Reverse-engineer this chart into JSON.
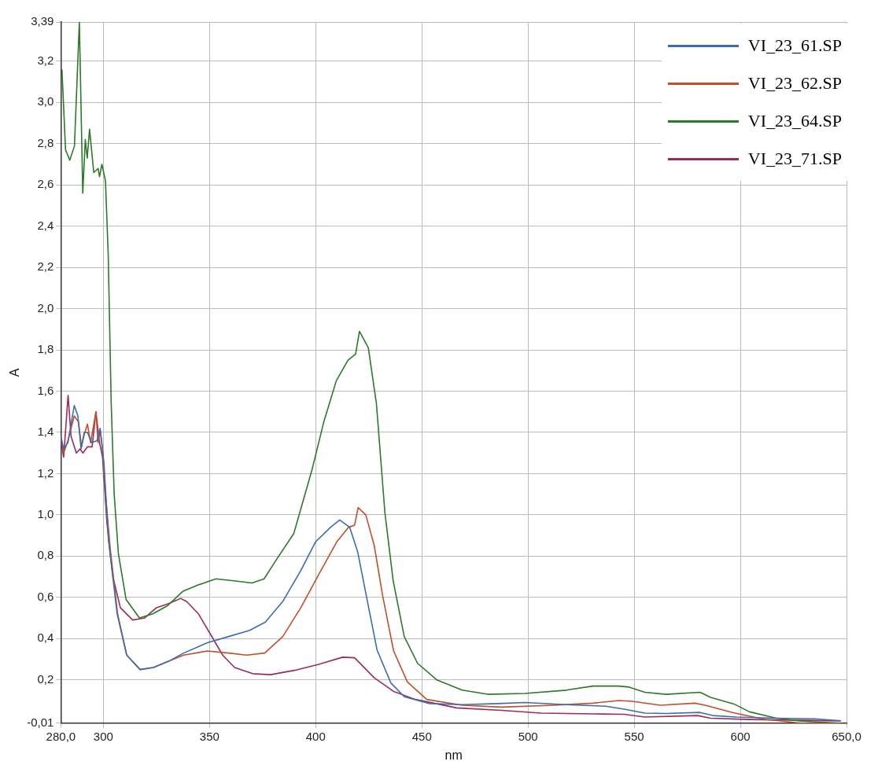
{
  "chart_data": {
    "type": "line",
    "xlabel": "nm",
    "ylabel": "A",
    "xlim": [
      280,
      650
    ],
    "ylim": [
      -0.01,
      3.39
    ],
    "xticks": [
      {
        "value": 280,
        "label": "280,0"
      },
      300,
      350,
      400,
      450,
      500,
      550,
      600,
      {
        "value": 650,
        "label": "650,0"
      }
    ],
    "yticks": [
      {
        "value": -0.01,
        "label": "-0,01"
      },
      {
        "value": 0.2,
        "label": "0,2"
      },
      {
        "value": 0.4,
        "label": "0,4"
      },
      {
        "value": 0.6,
        "label": "0,6"
      },
      {
        "value": 0.8,
        "label": "0,8"
      },
      {
        "value": 1.0,
        "label": "1,0"
      },
      {
        "value": 1.2,
        "label": "1,2"
      },
      {
        "value": 1.4,
        "label": "1,4"
      },
      {
        "value": 1.6,
        "label": "1,6"
      },
      {
        "value": 1.8,
        "label": "1,8"
      },
      {
        "value": 2.0,
        "label": "2,0"
      },
      {
        "value": 2.2,
        "label": "2,2"
      },
      {
        "value": 2.4,
        "label": "2,4"
      },
      {
        "value": 2.6,
        "label": "2,6"
      },
      {
        "value": 2.8,
        "label": "2,8"
      },
      {
        "value": 3.0,
        "label": "3,0"
      },
      {
        "value": 3.2,
        "label": "3,2"
      },
      {
        "value": 3.39,
        "label": "3,39"
      }
    ],
    "grid": true,
    "legend": "top right",
    "marker": "none",
    "line_style": "solid",
    "series": [
      {
        "name": "VI_23_61.SP",
        "color": "#3a6db0",
        "x": [
          280,
          281.3,
          283.3,
          286.3,
          288,
          289.5,
          291,
          292.5,
          294.5,
          297,
          298.5,
          300.3,
          302.4,
          306.5,
          311,
          317.3,
          323.6,
          330.7,
          337.8,
          349,
          359,
          368.9,
          376.3,
          384.5,
          393,
          400,
          407,
          411.3,
          416,
          419.8,
          423.8,
          428.9,
          435.4,
          441.8,
          453.7,
          469,
          486,
          498.5,
          518,
          536.6,
          545.3,
          555,
          565,
          581,
          587,
          598,
          616.6,
          635,
          647.3
        ],
        "values": [
          1.38,
          1.32,
          1.35,
          1.53,
          1.48,
          1.32,
          1.4,
          1.4,
          1.35,
          1.36,
          1.42,
          1.25,
          0.88,
          0.52,
          0.32,
          0.25,
          0.26,
          0.29,
          0.33,
          0.38,
          0.41,
          0.44,
          0.48,
          0.58,
          0.73,
          0.87,
          0.94,
          0.975,
          0.94,
          0.82,
          0.61,
          0.345,
          0.185,
          0.118,
          0.085,
          0.08,
          0.085,
          0.09,
          0.08,
          0.072,
          0.058,
          0.039,
          0.037,
          0.042,
          0.027,
          0.02,
          0.014,
          0.011,
          0.001
        ]
      },
      {
        "name": "VI_23_62.SP",
        "color": "#c0502a",
        "x": [
          280,
          281.3,
          283.3,
          286.3,
          288.3,
          289.7,
          291,
          292.5,
          294,
          296.5,
          297.5,
          298.5,
          299.6,
          301,
          303.2,
          306.7,
          311,
          317.3,
          323.6,
          330.7,
          337.8,
          349,
          359,
          367.5,
          376,
          384.5,
          393,
          401.4,
          410,
          415.5,
          418.3,
          420,
          423.6,
          427.6,
          431.5,
          436.7,
          443.2,
          452.3,
          469,
          487.5,
          512,
          530.5,
          542.8,
          549,
          562.4,
          578.5,
          583.4,
          597,
          611.7,
          628.8,
          647
        ],
        "values": [
          1.38,
          1.3,
          1.36,
          1.48,
          1.45,
          1.33,
          1.39,
          1.44,
          1.35,
          1.5,
          1.35,
          1.41,
          1.32,
          1.1,
          0.84,
          0.52,
          0.32,
          0.25,
          0.26,
          0.29,
          0.32,
          0.34,
          0.33,
          0.32,
          0.33,
          0.41,
          0.55,
          0.71,
          0.87,
          0.94,
          0.95,
          1.035,
          1.0,
          0.85,
          0.61,
          0.34,
          0.19,
          0.105,
          0.077,
          0.068,
          0.077,
          0.087,
          0.1,
          0.096,
          0.077,
          0.087,
          0.077,
          0.04,
          0.008,
          -0.01,
          -0.01
        ]
      },
      {
        "name": "VI_23_64.SP",
        "color": "#2a7a2a",
        "x": [
          280.5,
          282.2,
          284.2,
          286.4,
          288.7,
          290.3,
          291.5,
          292.4,
          293.5,
          295.5,
          297.5,
          298.2,
          299.3,
          301,
          302.3,
          303.7,
          305.1,
          307.1,
          310.7,
          317,
          323.3,
          330.3,
          337.5,
          344.6,
          353,
          361.5,
          370,
          375.7,
          381.3,
          389.7,
          398.3,
          403.8,
          409.7,
          415.2,
          418.8,
          420.6,
          424.8,
          428.6,
          432.6,
          436.5,
          441.7,
          448,
          457,
          469,
          481,
          498.5,
          518,
          530.5,
          542.8,
          547.6,
          555,
          565,
          581,
          586,
          597,
          604.3,
          616.6,
          628.8,
          647.3
        ],
        "values": [
          3.16,
          2.77,
          2.72,
          2.79,
          3.39,
          2.56,
          2.82,
          2.73,
          2.87,
          2.66,
          2.68,
          2.64,
          2.7,
          2.62,
          2.26,
          1.54,
          1.1,
          0.81,
          0.59,
          0.5,
          0.52,
          0.56,
          0.63,
          0.66,
          0.69,
          0.68,
          0.67,
          0.69,
          0.78,
          0.91,
          1.22,
          1.45,
          1.65,
          1.75,
          1.78,
          1.89,
          1.81,
          1.54,
          1.01,
          0.68,
          0.41,
          0.28,
          0.2,
          0.15,
          0.13,
          0.134,
          0.15,
          0.17,
          0.17,
          0.165,
          0.14,
          0.13,
          0.14,
          0.115,
          0.083,
          0.045,
          0.015,
          0.0,
          -0.01
        ]
      },
      {
        "name": "VI_23_71.SP",
        "color": "#9c2a5c",
        "x": [
          280,
          281.3,
          283.4,
          284.8,
          287.3,
          289,
          290.4,
          292.5,
          294.7,
          296.5,
          298.2,
          299.6,
          301.7,
          304.5,
          308,
          313.8,
          319.4,
          325,
          330.7,
          336.4,
          339.2,
          344.8,
          350.5,
          356.2,
          361.8,
          370.3,
          378.7,
          390,
          401.4,
          412.7,
          418.3,
          427.6,
          436.7,
          447,
          466.4,
          487.5,
          506,
          530.5,
          545.3,
          555,
          579.8,
          586,
          604.3,
          628.8,
          647.3
        ],
        "values": [
          1.36,
          1.28,
          1.58,
          1.38,
          1.3,
          1.32,
          1.3,
          1.33,
          1.33,
          1.5,
          1.35,
          1.28,
          0.96,
          0.7,
          0.55,
          0.49,
          0.5,
          0.55,
          0.57,
          0.595,
          0.58,
          0.52,
          0.42,
          0.32,
          0.26,
          0.23,
          0.225,
          0.246,
          0.275,
          0.31,
          0.307,
          0.21,
          0.144,
          0.105,
          0.064,
          0.052,
          0.039,
          0.035,
          0.033,
          0.02,
          0.027,
          0.014,
          0.008,
          0.004,
          0.001
        ]
      }
    ]
  }
}
